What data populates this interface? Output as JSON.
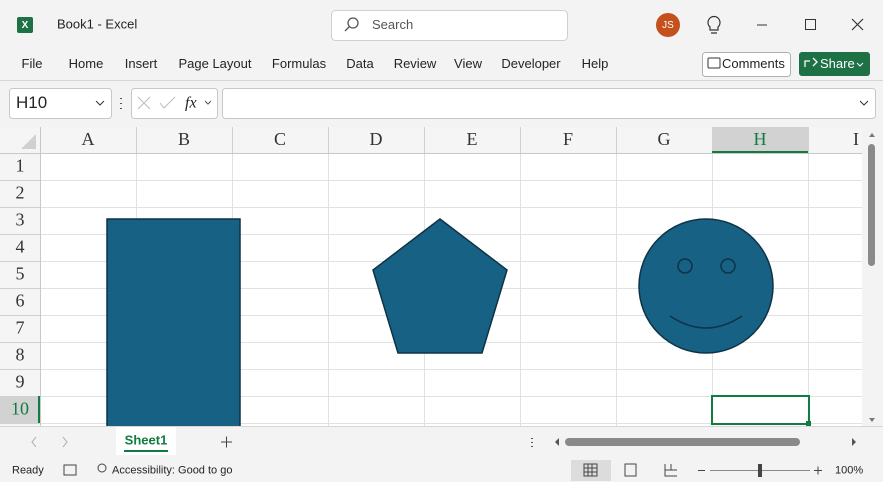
{
  "header": {
    "app_title": "Book1  -  Excel",
    "search": "Search",
    "user_initials": "JS"
  },
  "ribbon": {
    "tabs": [
      "File",
      "Home",
      "Insert",
      "Page Layout",
      "Formulas",
      "Data",
      "Review",
      "View",
      "Developer",
      "Help"
    ],
    "comments": "Comments",
    "share": "Share"
  },
  "formula_bar": {
    "name_box": "H10",
    "fx": "fx"
  },
  "grid": {
    "columns": [
      "A",
      "B",
      "C",
      "D",
      "E",
      "F",
      "G",
      "H",
      "I"
    ],
    "rows": [
      "1",
      "2",
      "3",
      "4",
      "5",
      "6",
      "7",
      "8",
      "9",
      "10"
    ]
  },
  "sheet_tabs": [
    "Sheet1"
  ],
  "status_bar": {
    "mode": "Ready",
    "accessibility": "Accessibility: Good to go",
    "zoom": "100%"
  }
}
